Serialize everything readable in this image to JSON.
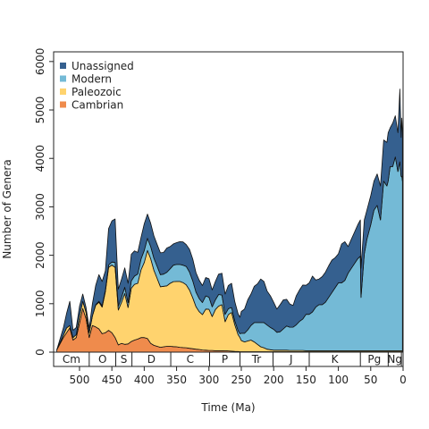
{
  "chart_data": {
    "type": "area",
    "stacked": true,
    "xlabel": "Time (Ma)",
    "ylabel": "Number of Genera",
    "xlim": [
      540,
      0
    ],
    "ylim": [
      0,
      6200
    ],
    "x_ticks": [
      500,
      450,
      400,
      350,
      300,
      250,
      200,
      150,
      100,
      50,
      0
    ],
    "y_ticks": [
      0,
      1000,
      2000,
      3000,
      4000,
      5000,
      6000
    ],
    "legend": {
      "placement": "top-left",
      "order": [
        "Unassigned",
        "Modern",
        "Paleozoic",
        "Cambrian"
      ]
    },
    "colors": {
      "Cambrian": "#ef8b4c",
      "Paleozoic": "#ffd36e",
      "Modern": "#74bad6",
      "Unassigned": "#35608f",
      "outline": "#111111"
    },
    "x": [
      535,
      525,
      520,
      515,
      510,
      505,
      500,
      495,
      490,
      485,
      480,
      475,
      470,
      465,
      460,
      455,
      450,
      445,
      440,
      435,
      430,
      425,
      420,
      415,
      410,
      405,
      400,
      395,
      390,
      385,
      380,
      375,
      370,
      365,
      360,
      355,
      350,
      345,
      340,
      335,
      330,
      325,
      320,
      315,
      310,
      305,
      300,
      295,
      290,
      285,
      280,
      275,
      270,
      265,
      260,
      255,
      252,
      250,
      245,
      240,
      235,
      230,
      225,
      220,
      215,
      210,
      205,
      200,
      195,
      190,
      185,
      180,
      175,
      170,
      165,
      160,
      155,
      150,
      145,
      140,
      135,
      130,
      125,
      120,
      115,
      110,
      105,
      100,
      95,
      90,
      85,
      80,
      75,
      70,
      66,
      65,
      60,
      56,
      50,
      45,
      40,
      35,
      30,
      25,
      23,
      20,
      16,
      12,
      8,
      5,
      3,
      2,
      1
    ],
    "series": [
      {
        "name": "Cambrian",
        "values": [
          50,
          300,
          400,
          500,
          250,
          300,
          600,
          900,
          700,
          300,
          550,
          520,
          480,
          380,
          400,
          450,
          400,
          300,
          150,
          180,
          160,
          170,
          220,
          250,
          270,
          300,
          300,
          280,
          180,
          140,
          120,
          100,
          110,
          120,
          120,
          115,
          110,
          100,
          95,
          90,
          80,
          70,
          60,
          55,
          45,
          40,
          35,
          35,
          30,
          30,
          30,
          28,
          26,
          20,
          15,
          12,
          10,
          10,
          10,
          10,
          10,
          10,
          10,
          10,
          10,
          10,
          10,
          10,
          10,
          10,
          10,
          10,
          10,
          10,
          10,
          10,
          10,
          10,
          10,
          10,
          10,
          10,
          10,
          10,
          10,
          10,
          10,
          10,
          10,
          10,
          10,
          10,
          10,
          10,
          10,
          10,
          10,
          10,
          10,
          10,
          10,
          10,
          10,
          10,
          10,
          10,
          10,
          10,
          10,
          10,
          10,
          10,
          10
        ]
      },
      {
        "name": "Paleozoic",
        "values": [
          0,
          50,
          100,
          50,
          50,
          60,
          150,
          150,
          130,
          100,
          200,
          450,
          550,
          550,
          850,
          1300,
          1400,
          1450,
          720,
          850,
          1050,
          750,
          1100,
          1150,
          1150,
          1400,
          1550,
          1820,
          1750,
          1550,
          1400,
          1250,
          1250,
          1250,
          1300,
          1340,
          1350,
          1360,
          1340,
          1300,
          1200,
          1050,
          880,
          780,
          730,
          850,
          850,
          700,
          850,
          920,
          950,
          600,
          750,
          800,
          550,
          350,
          290,
          230,
          200,
          220,
          240,
          200,
          150,
          100,
          80,
          50,
          40,
          30,
          30,
          30,
          30,
          30,
          25,
          25,
          25,
          25,
          25,
          20,
          20,
          20,
          20,
          20,
          20,
          20,
          20,
          20,
          20,
          20,
          20,
          20,
          20,
          20,
          20,
          20,
          20,
          20,
          20,
          20,
          20,
          20,
          20,
          20,
          20,
          20,
          20,
          20,
          20,
          20,
          20,
          20,
          20,
          20,
          20
        ]
      },
      {
        "name": "Modern",
        "values": [
          0,
          0,
          0,
          0,
          0,
          0,
          0,
          0,
          0,
          0,
          0,
          10,
          20,
          30,
          30,
          50,
          60,
          100,
          80,
          100,
          130,
          100,
          150,
          170,
          190,
          220,
          250,
          250,
          250,
          250,
          250,
          250,
          250,
          280,
          300,
          340,
          350,
          350,
          360,
          380,
          370,
          350,
          300,
          270,
          250,
          270,
          250,
          200,
          200,
          240,
          200,
          150,
          120,
          100,
          80,
          80,
          80,
          150,
          180,
          230,
          300,
          400,
          450,
          500,
          520,
          500,
          460,
          430,
          370,
          380,
          440,
          500,
          480,
          480,
          530,
          600,
          650,
          750,
          750,
          800,
          900,
          950,
          950,
          1000,
          1100,
          1200,
          1300,
          1400,
          1400,
          1450,
          1600,
          1700,
          1800,
          1900,
          1950,
          1100,
          2000,
          2300,
          2600,
          2900,
          3000,
          2700,
          3500,
          3400,
          3500,
          3800,
          3800,
          4000,
          3700,
          3900,
          3600,
          3600,
          3500
        ]
      },
      {
        "name": "Unassigned",
        "values": [
          0,
          150,
          300,
          500,
          150,
          150,
          200,
          150,
          100,
          100,
          250,
          400,
          550,
          500,
          400,
          750,
          850,
          900,
          350,
          380,
          400,
          400,
          550,
          520,
          450,
          450,
          550,
          500,
          480,
          460,
          450,
          450,
          450,
          500,
          460,
          440,
          450,
          470,
          480,
          450,
          470,
          450,
          400,
          380,
          350,
          380,
          380,
          350,
          380,
          420,
          450,
          420,
          480,
          500,
          400,
          350,
          340,
          450,
          500,
          620,
          650,
          750,
          800,
          900,
          850,
          700,
          650,
          560,
          480,
          560,
          600,
          550,
          480,
          450,
          600,
          650,
          700,
          600,
          650,
          740,
          560,
          530,
          580,
          620,
          650,
          670,
          620,
          600,
          800,
          800,
          550,
          600,
          650,
          700,
          750,
          600,
          700,
          600,
          600,
          600,
          650,
          700,
          850,
          900,
          1000,
          800,
          900,
          850,
          800,
          1500,
          800,
          1200,
          1000
        ]
      }
    ],
    "periods": [
      {
        "label": "Cm",
        "start": 541,
        "end": 485
      },
      {
        "label": "O",
        "start": 485,
        "end": 444
      },
      {
        "label": "S",
        "start": 444,
        "end": 419
      },
      {
        "label": "D",
        "start": 419,
        "end": 359
      },
      {
        "label": "C",
        "start": 359,
        "end": 299
      },
      {
        "label": "P",
        "start": 299,
        "end": 252
      },
      {
        "label": "Tr",
        "start": 252,
        "end": 201
      },
      {
        "label": "J",
        "start": 201,
        "end": 145
      },
      {
        "label": "K",
        "start": 145,
        "end": 66
      },
      {
        "label": "Pg",
        "start": 66,
        "end": 23
      },
      {
        "label": "Ng",
        "start": 23,
        "end": 2.6
      }
    ]
  }
}
